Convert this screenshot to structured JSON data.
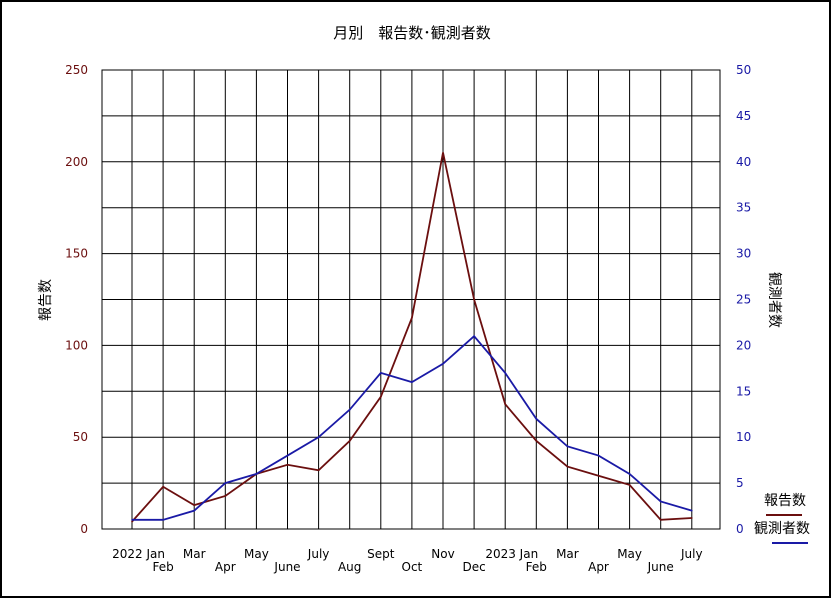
{
  "chart_data": {
    "type": "line",
    "title": "月別　報告数･観測者数",
    "ylabel_left": "報告数",
    "ylabel_right": "観測者数",
    "ylim_left": [
      0,
      250
    ],
    "ylim_right": [
      0,
      50
    ],
    "yticks_left": [
      0,
      50,
      100,
      150,
      200,
      250
    ],
    "yticks_right": [
      0,
      5,
      10,
      15,
      20,
      25,
      30,
      35,
      40,
      45,
      50
    ],
    "x_labels": [
      {
        "row1": "2022 Jan",
        "row2": ""
      },
      {
        "row1": "",
        "row2": "Feb"
      },
      {
        "row1": "Mar",
        "row2": ""
      },
      {
        "row1": "",
        "row2": "Apr"
      },
      {
        "row1": "May",
        "row2": ""
      },
      {
        "row1": "",
        "row2": "June"
      },
      {
        "row1": "July",
        "row2": ""
      },
      {
        "row1": "",
        "row2": "Aug"
      },
      {
        "row1": "Sept",
        "row2": ""
      },
      {
        "row1": "",
        "row2": "Oct"
      },
      {
        "row1": "Nov",
        "row2": ""
      },
      {
        "row1": "",
        "row2": "Dec"
      },
      {
        "row1": "2023 Jan",
        "row2": ""
      },
      {
        "row1": "",
        "row2": "Feb"
      },
      {
        "row1": "Mar",
        "row2": ""
      },
      {
        "row1": "",
        "row2": "Apr"
      },
      {
        "row1": "May",
        "row2": ""
      },
      {
        "row1": "",
        "row2": "June"
      },
      {
        "row1": "July",
        "row2": ""
      }
    ],
    "series": [
      {
        "name": "報告数",
        "axis": "left",
        "color": "#6b0f0f",
        "values": [
          4,
          23,
          13,
          18,
          30,
          35,
          32,
          48,
          72,
          115,
          205,
          125,
          68,
          48,
          34,
          29,
          24,
          5,
          6
        ]
      },
      {
        "name": "観測者数",
        "axis": "right",
        "color": "#1a1aa6",
        "values": [
          1,
          1,
          2,
          5,
          6,
          8,
          10,
          13,
          17,
          16,
          18,
          21,
          17,
          12,
          9,
          8,
          6,
          3,
          2
        ]
      }
    ],
    "grid": true,
    "legend_position": "bottom-right"
  },
  "colors": {
    "left_axis": "#6b0f0f",
    "right_axis": "#1a1aa6",
    "grid": "#000000"
  }
}
